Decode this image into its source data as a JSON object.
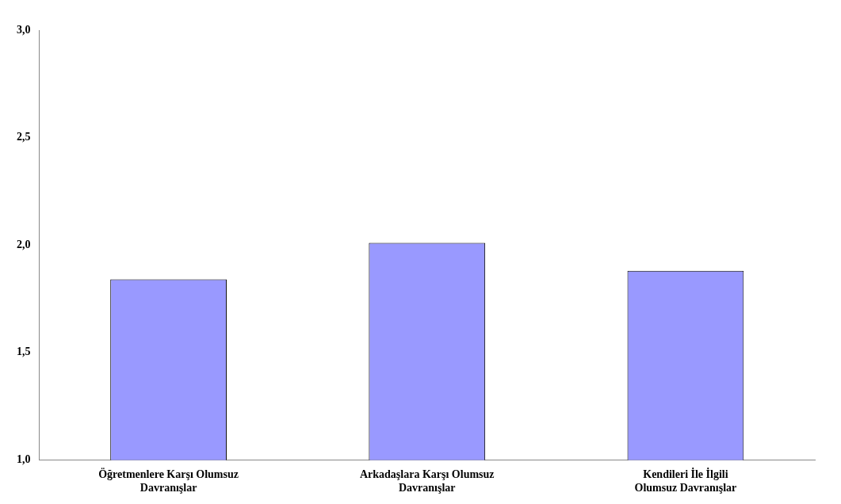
{
  "chart_data": {
    "type": "bar",
    "categories": [
      "Öğretmenlere Karşı Olumsuz Davranışlar",
      "Arkadaşlara Karşı Olumsuz Davranışlar",
      "Kendileri İle İlgili Olumsuz Davranışlar"
    ],
    "values": [
      1.84,
      2.01,
      1.88
    ],
    "color": "#9999ff",
    "ylim": [
      1,
      3
    ],
    "yticks": [
      {
        "value": 1,
        "label": "1,0"
      },
      {
        "value": 1.5,
        "label": "1,5"
      },
      {
        "value": 2,
        "label": "2,0"
      },
      {
        "value": 2.5,
        "label": "2,5"
      },
      {
        "value": 3,
        "label": "3,0"
      }
    ],
    "grid": false,
    "legend": false
  }
}
